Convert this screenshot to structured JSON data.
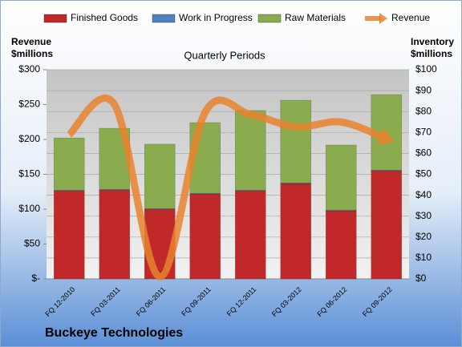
{
  "chart_data": {
    "type": "combo",
    "title": "Buckeye Technologies",
    "subtitle": "Quarterly Periods",
    "y_label": "Revenue $millions",
    "y2_label": "Inventory $millions",
    "categories": [
      "FQ 12-2010",
      "FQ 03-2011",
      "FQ 06-2011",
      "FQ 09-2011",
      "FQ 12-2011",
      "FQ 03-2012",
      "FQ 06-2012",
      "FQ 09-2012"
    ],
    "series": [
      {
        "name": "Finished Goods",
        "type": "bar",
        "axis": "y2",
        "color": "#c0282a",
        "values": [
          42.1,
          42.5,
          33.3,
          40.6,
          42.1,
          45.6,
          32.6,
          51.7
        ]
      },
      {
        "name": "Work in Progress",
        "type": "bar",
        "axis": "y2",
        "color": "#4f81bd",
        "values": [
          0.3,
          0.3,
          0.3,
          0.3,
          0.3,
          0.3,
          0.3,
          0.3
        ]
      },
      {
        "name": "Raw Materials",
        "type": "bar",
        "axis": "y2",
        "color": "#8aab4e",
        "values": [
          25.0,
          29.2,
          30.8,
          33.8,
          38.1,
          39.5,
          31.1,
          36.1
        ]
      },
      {
        "name": "Revenue",
        "type": "line",
        "axis": "y",
        "color": "#e8832e",
        "values": [
          207,
          250,
          3,
          239,
          236,
          218,
          225,
          201
        ]
      }
    ],
    "ylim": [
      0,
      300
    ],
    "yticks": [
      {
        "value": 0,
        "label": "$-"
      },
      {
        "value": 50,
        "label": "$50"
      },
      {
        "value": 100,
        "label": "$100"
      },
      {
        "value": 150,
        "label": "$150"
      },
      {
        "value": 200,
        "label": "$200"
      },
      {
        "value": 250,
        "label": "$250"
      },
      {
        "value": 300,
        "label": "$300"
      }
    ],
    "y2lim": [
      0,
      100
    ],
    "y2ticks": [
      {
        "value": 0,
        "label": "$0"
      },
      {
        "value": 10,
        "label": "$10"
      },
      {
        "value": 20,
        "label": "$20"
      },
      {
        "value": 30,
        "label": "$30"
      },
      {
        "value": 40,
        "label": "$40"
      },
      {
        "value": 50,
        "label": "$50"
      },
      {
        "value": 60,
        "label": "$60"
      },
      {
        "value": 70,
        "label": "$70"
      },
      {
        "value": 80,
        "label": "$80"
      },
      {
        "value": 90,
        "label": "$90"
      },
      {
        "value": 100,
        "label": "$100"
      }
    ],
    "grid": true,
    "legend": "top"
  }
}
